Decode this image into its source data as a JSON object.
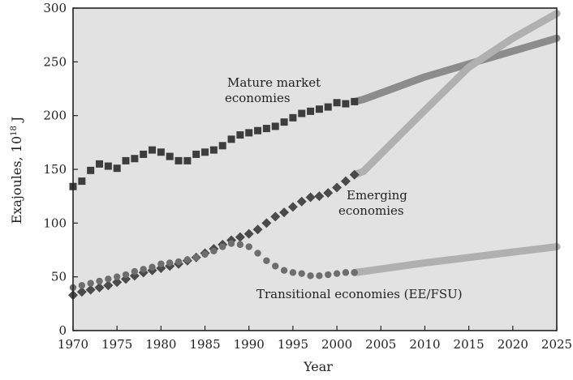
{
  "chart_data": {
    "type": "line",
    "xlabel": "Year",
    "ylabel_main": "Exajoules, 10",
    "ylabel_sup": "18",
    "ylabel_unit": " J",
    "xlim": [
      1970,
      2025
    ],
    "ylim": [
      0,
      300
    ],
    "x_ticks": [
      1970,
      1975,
      1980,
      1985,
      1990,
      1995,
      2000,
      2005,
      2010,
      2015,
      2020,
      2025
    ],
    "y_ticks": [
      0,
      50,
      100,
      150,
      200,
      250,
      300
    ],
    "grid": false,
    "background": "#e2e2e2",
    "annotations": {
      "mature_line1": "Mature market",
      "mature_line2": "economies",
      "emerging_line1": "Emerging",
      "emerging_line2": "economies",
      "transitional": "Transitional economies (EE/FSU)"
    },
    "series": [
      {
        "name": "Mature market economies",
        "marker": "square",
        "color": "#3d3d3d",
        "projection_color": "#8c8c8c",
        "historical": {
          "x": [
            1970,
            1971,
            1972,
            1973,
            1974,
            1975,
            1976,
            1977,
            1978,
            1979,
            1980,
            1981,
            1982,
            1983,
            1984,
            1985,
            1986,
            1987,
            1988,
            1989,
            1990,
            1991,
            1992,
            1993,
            1994,
            1995,
            1996,
            1997,
            1998,
            1999,
            2000,
            2001,
            2002
          ],
          "y": [
            134,
            139,
            149,
            155,
            153,
            151,
            158,
            160,
            164,
            168,
            166,
            162,
            158,
            158,
            164,
            166,
            168,
            172,
            178,
            182,
            184,
            186,
            188,
            190,
            194,
            198,
            202,
            204,
            206,
            208,
            212,
            211,
            213
          ]
        },
        "projection": {
          "x": [
            2003,
            2010,
            2015,
            2020,
            2025
          ],
          "y": [
            215,
            236,
            248,
            260,
            272
          ]
        }
      },
      {
        "name": "Emerging economies",
        "marker": "diamond",
        "color": "#4a4a4a",
        "projection_color": "#b0b0b0",
        "historical": {
          "x": [
            1970,
            1971,
            1972,
            1973,
            1974,
            1975,
            1976,
            1977,
            1978,
            1979,
            1980,
            1981,
            1982,
            1983,
            1984,
            1985,
            1986,
            1987,
            1988,
            1989,
            1990,
            1991,
            1992,
            1993,
            1994,
            1995,
            1996,
            1997,
            1998,
            1999,
            2000,
            2001,
            2002
          ],
          "y": [
            33,
            36,
            38,
            40,
            42,
            45,
            48,
            51,
            54,
            56,
            58,
            60,
            62,
            65,
            68,
            72,
            76,
            80,
            84,
            87,
            90,
            94,
            100,
            106,
            110,
            115,
            120,
            124,
            125,
            128,
            133,
            139,
            145
          ]
        },
        "projection": {
          "x": [
            2003,
            2010,
            2015,
            2020,
            2025
          ],
          "y": [
            148,
            205,
            245,
            272,
            295
          ]
        }
      },
      {
        "name": "Transitional economies (EE/FSU)",
        "marker": "circle",
        "color": "#6e6e6e",
        "projection_color": "#b0b0b0",
        "historical": {
          "x": [
            1970,
            1971,
            1972,
            1973,
            1974,
            1975,
            1976,
            1977,
            1978,
            1979,
            1980,
            1981,
            1982,
            1983,
            1984,
            1985,
            1986,
            1987,
            1988,
            1989,
            1990,
            1991,
            1992,
            1993,
            1994,
            1995,
            1996,
            1997,
            1998,
            1999,
            2000,
            2001,
            2002
          ],
          "y": [
            40,
            42,
            44,
            46,
            48,
            50,
            52,
            55,
            57,
            59,
            62,
            63,
            64,
            66,
            68,
            71,
            74,
            78,
            81,
            80,
            78,
            72,
            65,
            60,
            56,
            54,
            53,
            51,
            51,
            52,
            53,
            54,
            54
          ]
        },
        "projection": {
          "x": [
            2003,
            2010,
            2015,
            2020,
            2025
          ],
          "y": [
            55,
            63,
            68,
            73,
            78
          ]
        }
      }
    ]
  }
}
